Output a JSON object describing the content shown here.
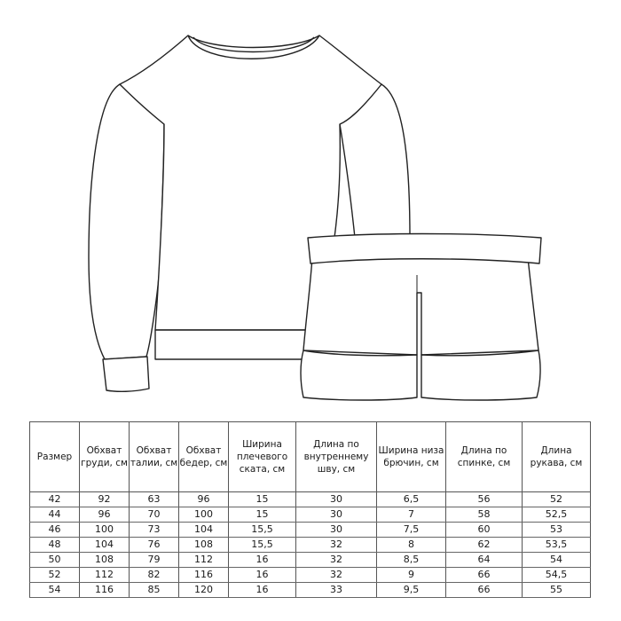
{
  "headers": [
    "Размер",
    "Обхват груди, см",
    "Обхват талии, см",
    "Обхват бедер, см",
    "Ширина плечевого ската, см",
    "Длина по внутреннему шву, см",
    "Ширина низа брючин, см",
    "Длина по спинке, см",
    "Длина рукава, см"
  ],
  "rows": [
    [
      "42",
      "92",
      "63",
      "96",
      "15",
      "30",
      "6,5",
      "56",
      "52"
    ],
    [
      "44",
      "96",
      "70",
      "100",
      "15",
      "30",
      "7",
      "58",
      "52,5"
    ],
    [
      "46",
      "100",
      "73",
      "104",
      "15,5",
      "30",
      "7,5",
      "60",
      "53"
    ],
    [
      "48",
      "104",
      "76",
      "108",
      "15,5",
      "32",
      "8",
      "62",
      "53,5"
    ],
    [
      "50",
      "108",
      "79",
      "112",
      "16",
      "32",
      "8,5",
      "64",
      "54"
    ],
    [
      "52",
      "112",
      "82",
      "116",
      "16",
      "32",
      "9",
      "66",
      "54,5"
    ],
    [
      "54",
      "116",
      "85",
      "120",
      "16",
      "33",
      "9,5",
      "66",
      "55"
    ]
  ]
}
